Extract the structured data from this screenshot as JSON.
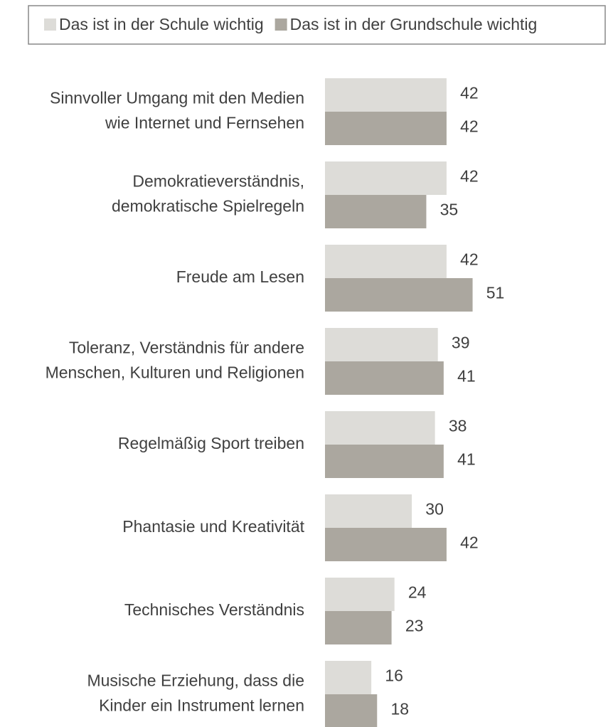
{
  "chart_data": {
    "type": "bar",
    "orientation": "horizontal",
    "categories": [
      [
        "Sinnvoller Umgang mit den Medien",
        "wie Internet und Fernsehen"
      ],
      [
        "Demokratieverständnis,",
        "demokratische Spielregeln"
      ],
      [
        "Freude am Lesen"
      ],
      [
        "Toleranz, Verständnis für andere",
        "Menschen, Kulturen und Religionen"
      ],
      [
        "Regelmäßig Sport treiben"
      ],
      [
        "Phantasie und Kreativität"
      ],
      [
        "Technisches Verständnis"
      ],
      [
        "Musische Erziehung, dass die",
        "Kinder ein Instrument lernen"
      ]
    ],
    "series": [
      {
        "name": "Das ist in der Schule wichtig",
        "color": "#dddcd8",
        "values": [
          42,
          42,
          42,
          39,
          38,
          30,
          24,
          16
        ]
      },
      {
        "name": "Das ist in der Grundschule wichtig",
        "color": "#aba79f",
        "values": [
          42,
          35,
          51,
          41,
          41,
          42,
          23,
          18
        ]
      }
    ],
    "xlim": [
      0,
      100
    ],
    "legend": "top"
  }
}
